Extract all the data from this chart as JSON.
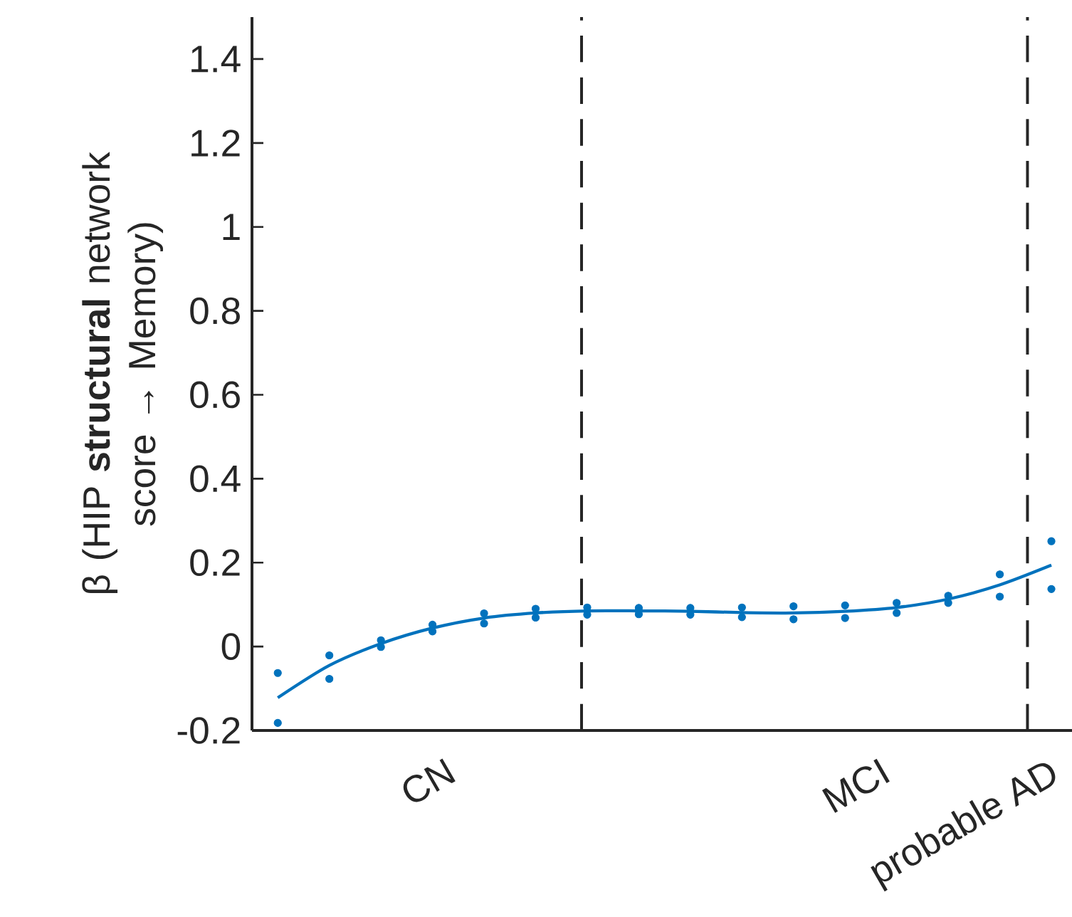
{
  "chart_data": {
    "type": "line",
    "ylabel": "β (HIP **structural** network score → Memory)",
    "categories": [
      null,
      null,
      null,
      null,
      null,
      null,
      null,
      null,
      null,
      null,
      null,
      null,
      null,
      null,
      null,
      null
    ],
    "annotations": [
      "CN",
      "MCI",
      "probable AD"
    ],
    "ylim": [
      -0.2,
      1.5
    ],
    "yticks": [
      -0.2,
      0,
      0.2,
      0.4,
      0.6,
      0.8,
      1,
      1.2,
      1.4
    ],
    "series": [
      {
        "color": "#0072bd",
        "values": [
          -0.122,
          -0.045,
          0.007,
          0.044,
          0.068,
          0.08,
          0.085,
          0.085,
          0.084,
          0.081,
          0.08,
          0.084,
          0.093,
          0.113,
          0.147,
          0.194
        ]
      },
      {
        "type": "scatter",
        "color": "#0072bd",
        "values": [
          -0.063,
          -0.021,
          0.015,
          0.052,
          0.079,
          0.09,
          0.093,
          0.092,
          0.092,
          0.093,
          0.096,
          0.098,
          0.104,
          0.121,
          0.172,
          0.251
        ]
      },
      {
        "type": "scatter",
        "color": "#0072bd",
        "values": [
          -0.182,
          -0.077,
          -0.001,
          0.036,
          0.055,
          0.069,
          0.076,
          0.077,
          0.076,
          0.07,
          0.065,
          0.068,
          0.08,
          0.104,
          0.119,
          0.137
        ]
      }
    ]
  }
}
